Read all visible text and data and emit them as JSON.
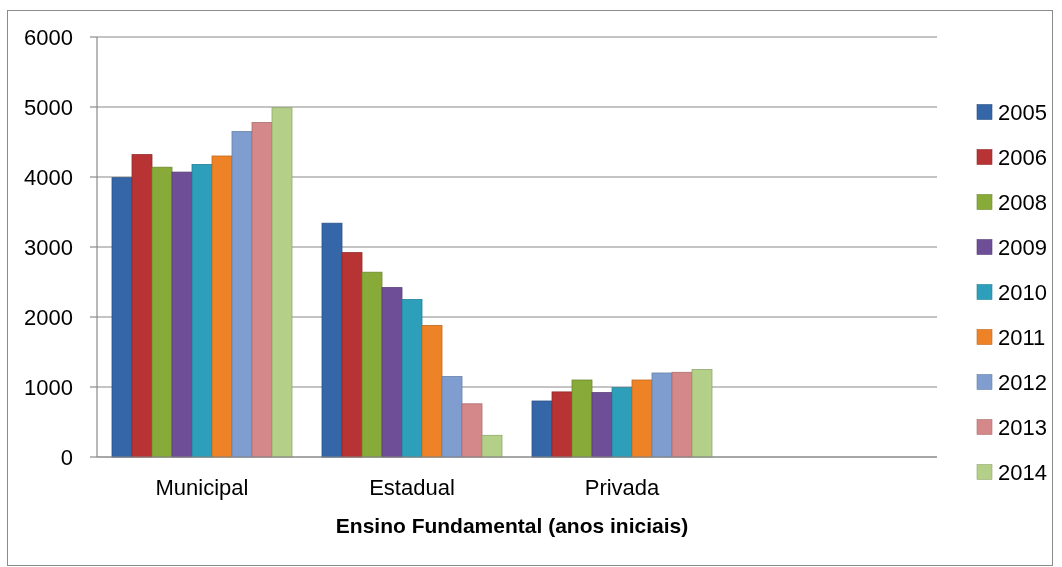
{
  "chart_data": {
    "type": "bar",
    "xlabel": "Ensino Fundamental (anos iniciais)",
    "categories": [
      "Municipal",
      "Estadual",
      "Privada",
      null
    ],
    "series": [
      {
        "name": "2005",
        "color": "#3466a8",
        "values": [
          3990,
          3340,
          800,
          null
        ]
      },
      {
        "name": "2006",
        "color": "#b83434",
        "values": [
          4320,
          2920,
          930,
          null
        ]
      },
      {
        "name": "2008",
        "color": "#88aa38",
        "values": [
          4140,
          2640,
          1100,
          null
        ]
      },
      {
        "name": "2009",
        "color": "#6e4e96",
        "values": [
          4070,
          2420,
          920,
          null
        ]
      },
      {
        "name": "2010",
        "color": "#2d9fba",
        "values": [
          4180,
          2250,
          990,
          null
        ]
      },
      {
        "name": "2011",
        "color": "#ee8226",
        "values": [
          4300,
          1880,
          1100,
          null
        ]
      },
      {
        "name": "2012",
        "color": "#7f9ecf",
        "values": [
          4650,
          1150,
          1200,
          null
        ]
      },
      {
        "name": "2013",
        "color": "#d4888a",
        "values": [
          4780,
          760,
          1210,
          null
        ]
      },
      {
        "name": "2014",
        "color": "#b3cf88",
        "values": [
          4990,
          310,
          1250,
          null
        ]
      }
    ],
    "ylim": [
      0,
      6000
    ],
    "yticks": [
      0,
      1000,
      2000,
      3000,
      4000,
      5000,
      6000
    ],
    "grid": "y",
    "legend": "right"
  }
}
